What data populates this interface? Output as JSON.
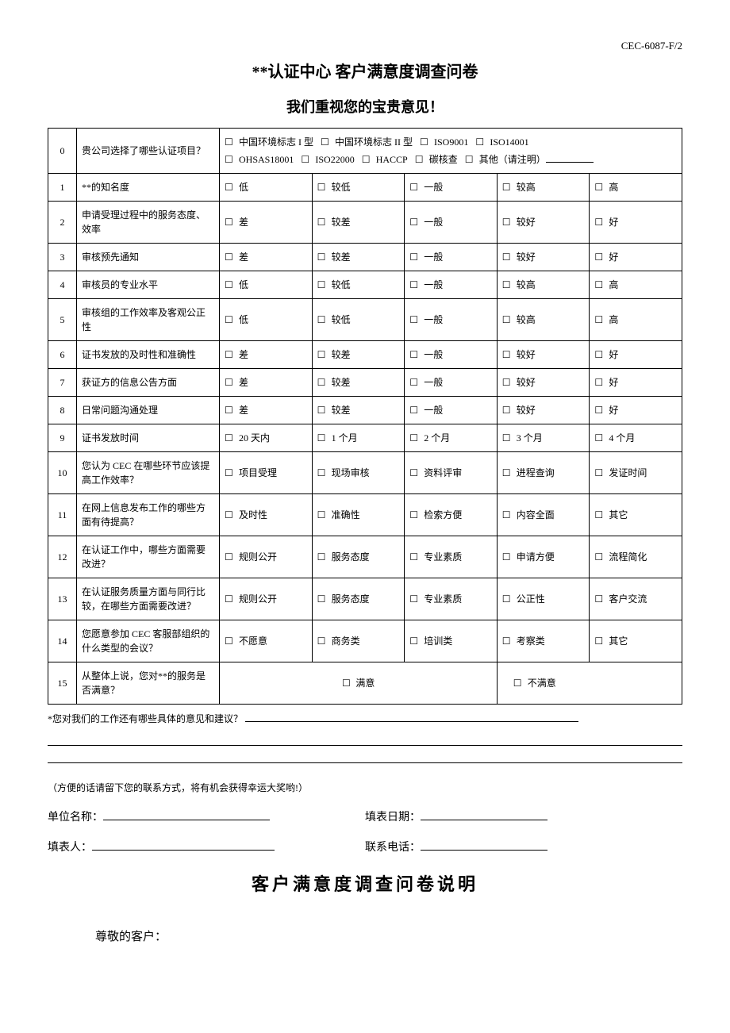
{
  "doc_code": "CEC-6087-F/2",
  "title": "**认证中心 客户满意度调查问卷",
  "subtitle": "我们重视您的宝贵意见！",
  "row0": {
    "num": "0",
    "question": "贵公司选择了哪些认证项目？",
    "opts": [
      "中国环境标志 I 型",
      "中国环境标志 II 型",
      "ISO9001",
      "ISO14001",
      "OHSAS18001",
      "ISO22000",
      "HACCP",
      "碳核查",
      "其他（请注明）"
    ]
  },
  "rows": [
    {
      "num": "1",
      "q": "**的知名度",
      "opts": [
        "低",
        "较低",
        "一般",
        "较高",
        "高"
      ]
    },
    {
      "num": "2",
      "q": "申请受理过程中的服务态度、效率",
      "opts": [
        "差",
        "较差",
        "一般",
        "较好",
        "好"
      ]
    },
    {
      "num": "3",
      "q": "审核预先通知",
      "opts": [
        "差",
        "较差",
        "一般",
        "较好",
        "好"
      ]
    },
    {
      "num": "4",
      "q": "审核员的专业水平",
      "opts": [
        "低",
        "较低",
        "一般",
        "较高",
        "高"
      ]
    },
    {
      "num": "5",
      "q": "审核组的工作效率及客观公正性",
      "opts": [
        "低",
        "较低",
        "一般",
        "较高",
        "高"
      ]
    },
    {
      "num": "6",
      "q": "证书发放的及时性和准确性",
      "opts": [
        "差",
        "较差",
        "一般",
        "较好",
        "好"
      ]
    },
    {
      "num": "7",
      "q": "获证方的信息公告方面",
      "opts": [
        "差",
        "较差",
        "一般",
        "较好",
        "好"
      ]
    },
    {
      "num": "8",
      "q": "日常问题沟通处理",
      "opts": [
        "差",
        "较差",
        "一般",
        "较好",
        "好"
      ]
    },
    {
      "num": "9",
      "q": "证书发放时间",
      "opts": [
        "20 天内",
        "1 个月",
        "2 个月",
        "3 个月",
        "4 个月"
      ]
    },
    {
      "num": "10",
      "q": "您认为 CEC 在哪些环节应该提高工作效率？",
      "opts": [
        "项目受理",
        "现场审核",
        "资料评审",
        "进程查询",
        "发证时间"
      ]
    },
    {
      "num": "11",
      "q": "在网上信息发布工作的哪些方面有待提高？",
      "opts": [
        "及时性",
        "准确性",
        "检索方便",
        "内容全面",
        "其它"
      ]
    },
    {
      "num": "12",
      "q": "在认证工作中，哪些方面需要改进？",
      "opts": [
        "规则公开",
        "服务态度",
        "专业素质",
        "申请方便",
        "流程简化"
      ]
    },
    {
      "num": "13",
      "q": "在认证服务质量方面与同行比较，在哪些方面需要改进？",
      "opts": [
        "规则公开",
        "服务态度",
        "专业素质",
        "公正性",
        "客户交流"
      ]
    },
    {
      "num": "14",
      "q": "您愿意参加 CEC 客服部组织的什么类型的会议？",
      "opts": [
        "不愿意",
        "商务类",
        "培训类",
        "考察类",
        "其它"
      ]
    }
  ],
  "row15": {
    "num": "15",
    "question": "从整体上说，您对**的服务是否满意？",
    "opts": [
      "满意",
      "不满意"
    ]
  },
  "suggestions_label": "*您对我们的工作还有哪些具体的意见和建议？",
  "note": "（方便的话请留下您的联系方式，将有机会获得幸运大奖哟!）",
  "contact": {
    "org_label": "单位名称：",
    "date_label": "填表日期：",
    "filler_label": "填表人：",
    "phone_label": "联系电话："
  },
  "instructions_title": "客户满意度调查问卷说明",
  "salutation": "尊敬的客户："
}
